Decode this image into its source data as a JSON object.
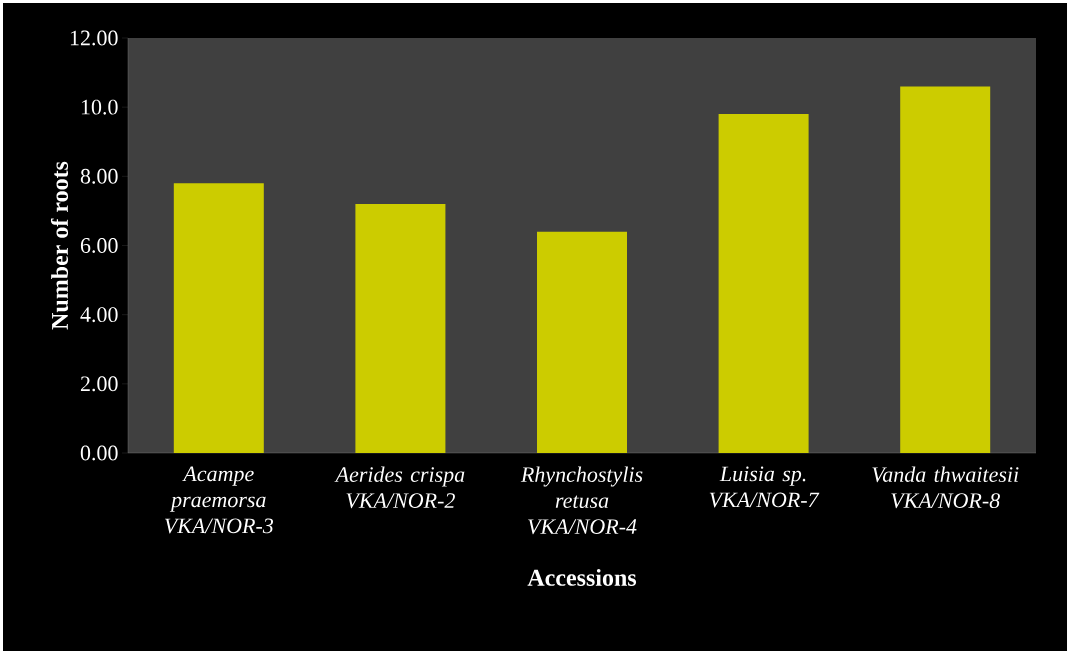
{
  "chart_data": {
    "type": "bar",
    "xlabel": "Accessions",
    "ylabel": "Number of roots",
    "categories": [
      "Acampe praemorsa VKA/NOR-3",
      "Aerides crispa VKA/NOR-2",
      "Rhynchostylis retusa VKA/NOR-4",
      "Luisia sp. VKA/NOR-7",
      "Vanda thwaitesii VKA/NOR-8"
    ],
    "values": [
      7.8,
      7.2,
      6.4,
      9.8,
      10.6
    ],
    "color": "#cccc00",
    "ylim": [
      0,
      12
    ],
    "yticks": [
      {
        "value": 0,
        "label": "0.00"
      },
      {
        "value": 2,
        "label": "2.00"
      },
      {
        "value": 4,
        "label": "4.00"
      },
      {
        "value": 6,
        "label": "6.00"
      },
      {
        "value": 8,
        "label": "8.00"
      },
      {
        "value": 10,
        "label": "10.0"
      },
      {
        "value": 12,
        "label": "12.00"
      }
    ]
  }
}
